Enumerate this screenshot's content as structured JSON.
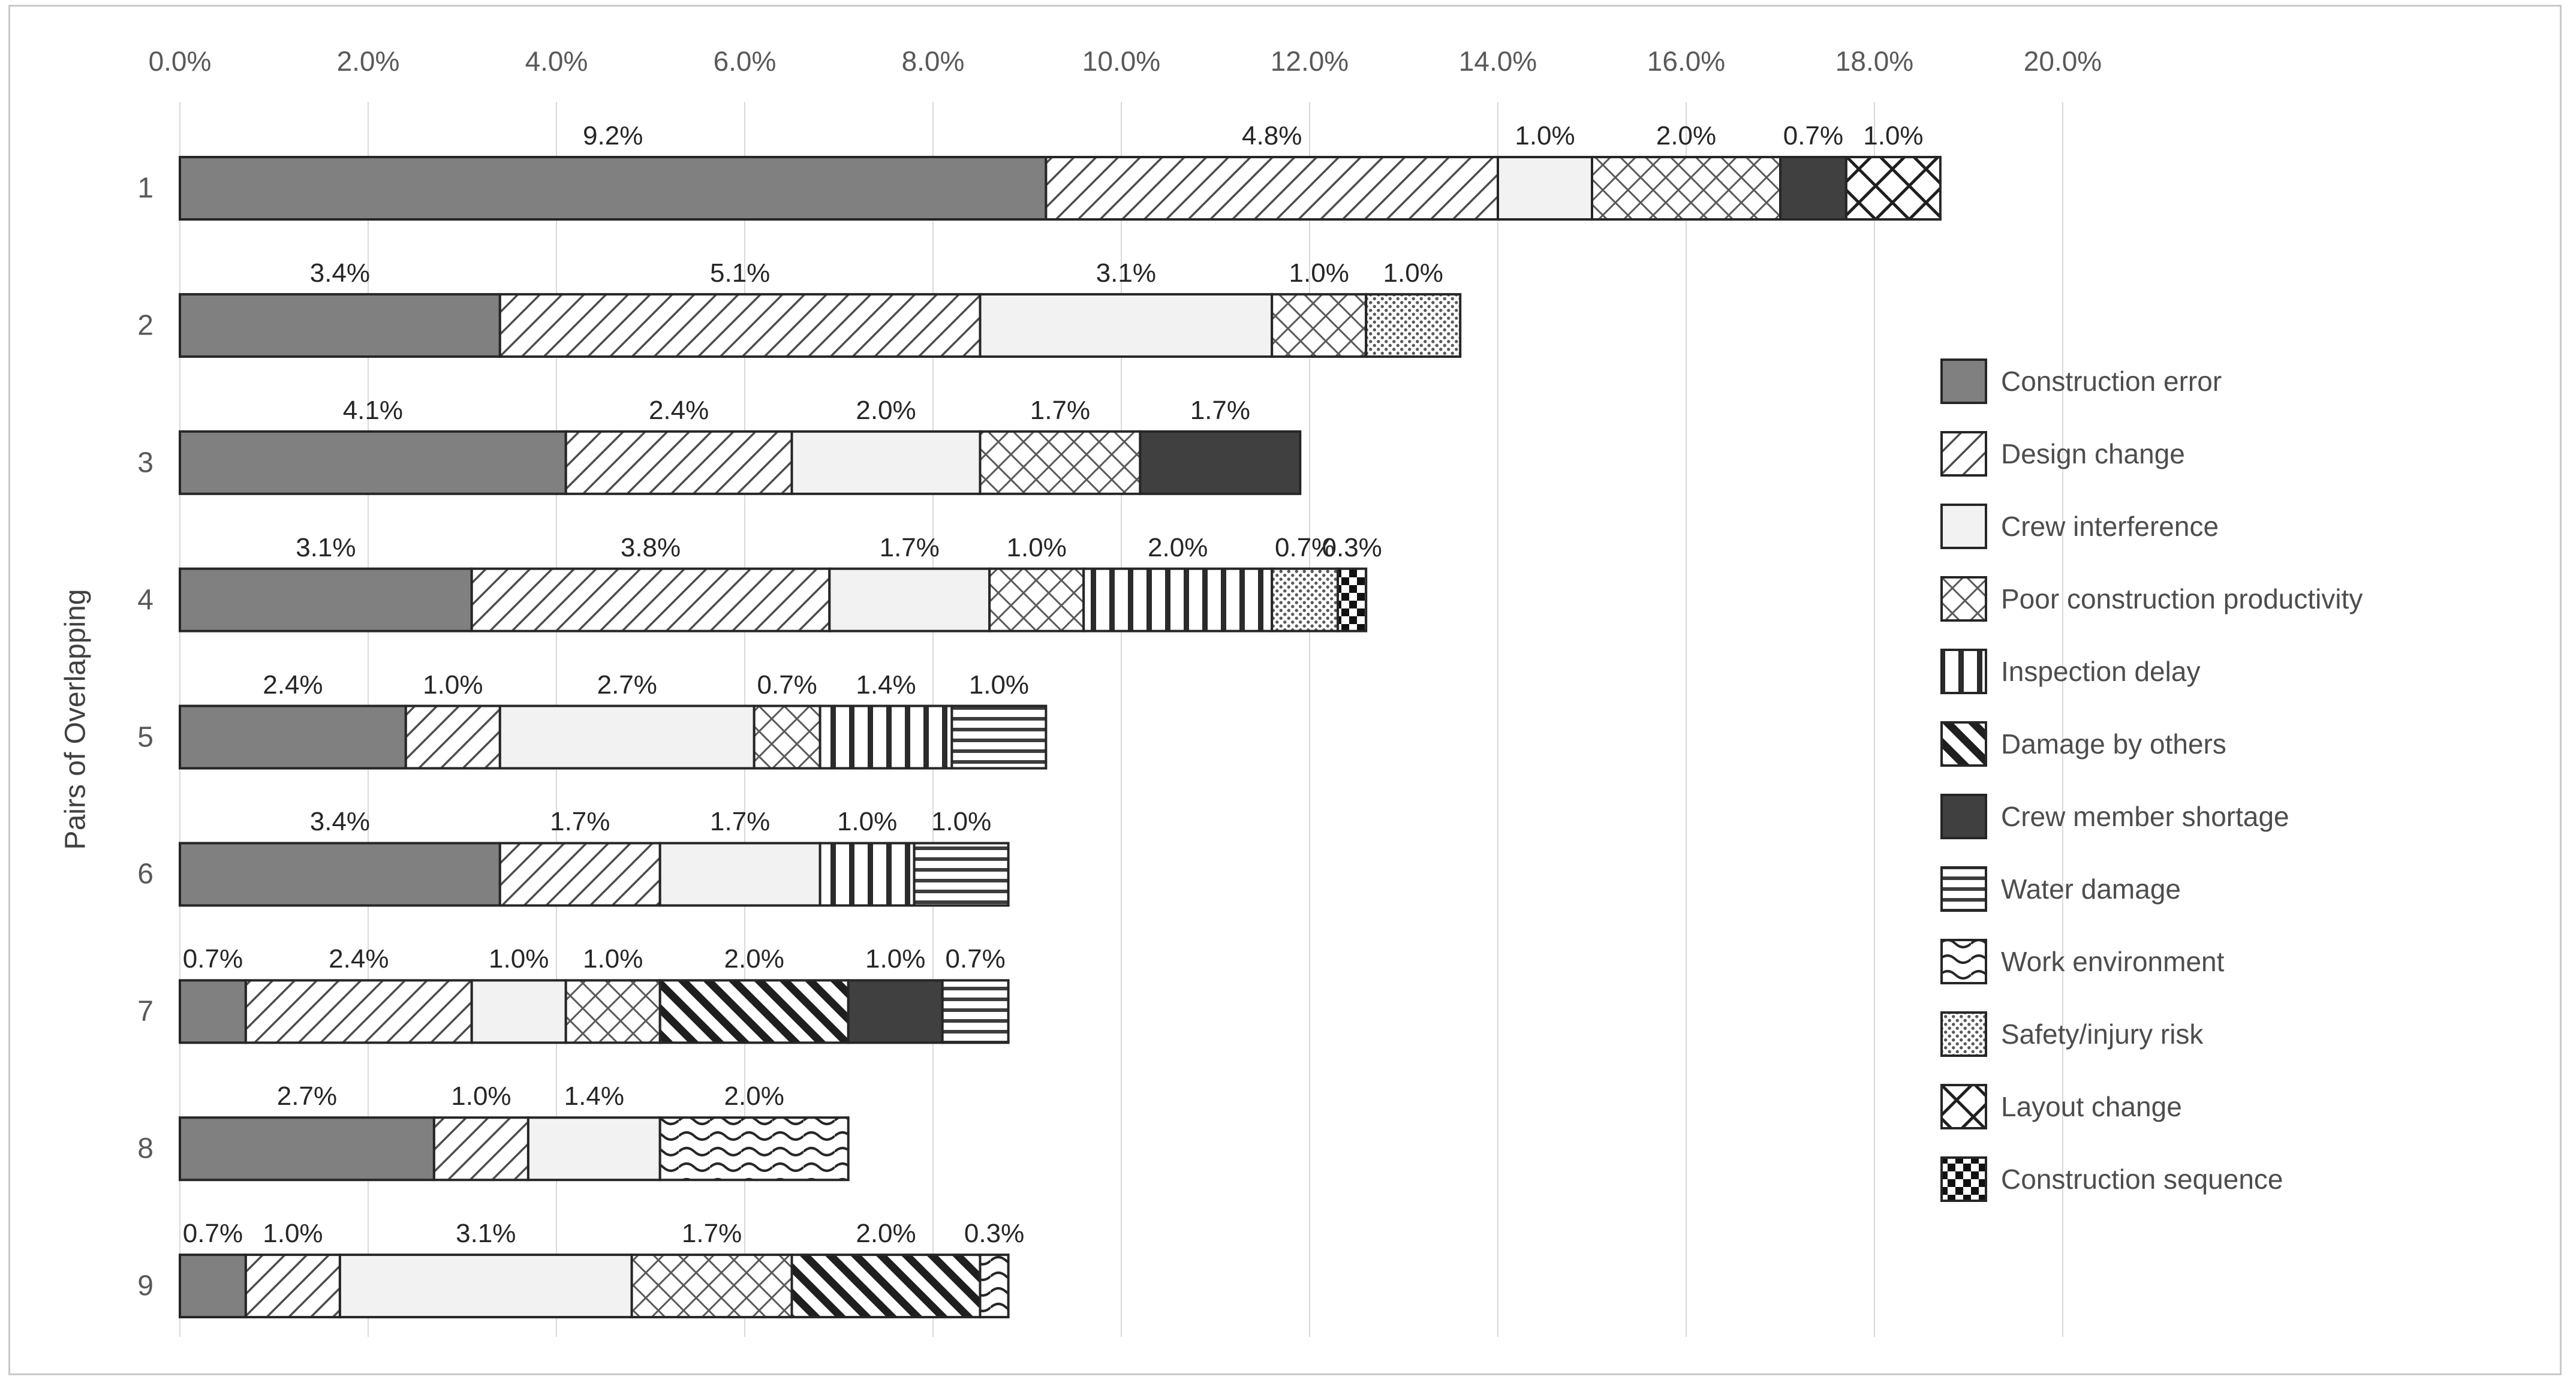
{
  "figure": {
    "y_axis_title": "Pairs of Overlapping"
  },
  "style": {
    "gridline_color": "#d9d9d9",
    "segment_outline": "#262626",
    "tick_color": "#595959",
    "data_label_color": "#262626",
    "figure_border_color": "#c9c9c9"
  },
  "chart_data": {
    "type": "bar",
    "orientation": "horizontal-stacked",
    "title": "",
    "xlabel": "",
    "ylabel": "Pairs of Overlapping",
    "x_axis": {
      "position": "top",
      "min": 0,
      "max": 20,
      "unit": "%",
      "grid": true,
      "ticks": [
        "0.0%",
        "2.0%",
        "4.0%",
        "6.0%",
        "8.0%",
        "10.0%",
        "12.0%",
        "14.0%",
        "16.0%",
        "18.0%",
        "20.0%"
      ]
    },
    "categories": [
      "1",
      "2",
      "3",
      "4",
      "5",
      "6",
      "7",
      "8",
      "9"
    ],
    "label_format": "one-decimal-percent",
    "legend_position": "right",
    "series": [
      {
        "name": "Construction error",
        "color": "#808080",
        "values": [
          9.2,
          3.4,
          4.1,
          3.1,
          2.4,
          3.4,
          0.7,
          2.7,
          0.7
        ]
      },
      {
        "name": "Design change",
        "texture": "diagonal-light",
        "values": [
          4.8,
          5.1,
          2.4,
          3.8,
          1.0,
          1.7,
          2.4,
          1.0,
          1.0
        ]
      },
      {
        "name": "Crew interference",
        "color": "#f2f2f2",
        "values": [
          1.0,
          3.1,
          2.0,
          1.7,
          2.7,
          1.7,
          1.0,
          1.4,
          3.1
        ]
      },
      {
        "name": "Poor construction productivity",
        "texture": "crosshatch",
        "values": [
          2.0,
          1.0,
          1.7,
          1.0,
          0.7,
          0,
          1.0,
          0,
          1.7
        ]
      },
      {
        "name": "Inspection delay",
        "texture": "vertical-stripes",
        "values": [
          0,
          0,
          0,
          2.0,
          1.4,
          1.0,
          0,
          0,
          0
        ]
      },
      {
        "name": "Damage by others",
        "texture": "diagonal-bold",
        "values": [
          0,
          0,
          0,
          0,
          0,
          0,
          2.0,
          0,
          2.0
        ]
      },
      {
        "name": "Crew member shortage",
        "color": "#404040",
        "values": [
          0.7,
          0,
          1.7,
          0,
          0,
          0,
          1.0,
          0,
          0
        ]
      },
      {
        "name": "Water damage",
        "texture": "horizontal-stripes",
        "values": [
          0,
          0,
          0,
          0,
          1.0,
          1.0,
          0.7,
          0,
          0
        ]
      },
      {
        "name": "Work environment",
        "texture": "waves",
        "values": [
          0,
          0,
          0,
          0,
          0,
          0,
          0,
          2.0,
          0.3
        ]
      },
      {
        "name": "Safety/injury risk",
        "texture": "dots",
        "values": [
          0,
          1.0,
          0,
          0.7,
          0,
          0,
          0,
          0,
          0
        ]
      },
      {
        "name": "Layout change",
        "texture": "diamond-lattice",
        "values": [
          1.0,
          0,
          0,
          0,
          0,
          0,
          0,
          0,
          0
        ]
      },
      {
        "name": "Construction sequence",
        "texture": "checkerboard",
        "values": [
          0,
          0,
          0,
          0.3,
          0,
          0,
          0,
          0,
          0
        ]
      }
    ]
  }
}
